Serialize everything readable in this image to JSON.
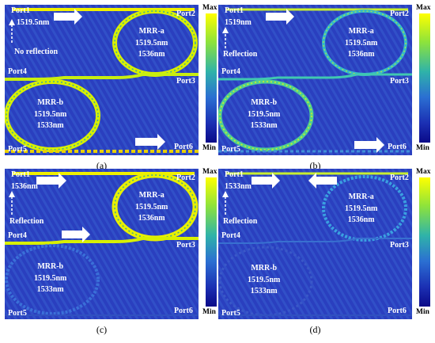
{
  "colorbar": {
    "max_label": "Max",
    "min_label": "Min",
    "colors": [
      "#ffff00",
      "#8ee33b",
      "#2fb3a9",
      "#2b6fd2",
      "#1b2fb3",
      "#0a0a88"
    ]
  },
  "panels": [
    {
      "caption": "(a)",
      "port1": "Port1",
      "wavelength": "1519.5nm",
      "reflection": "No reflection",
      "port2": "Port2",
      "port3": "Port3",
      "port4": "Port4",
      "port5": "Port5",
      "port6": "Port6",
      "mrr_a": {
        "name": "MRR-a",
        "w1": "1519.5nm",
        "w2": "1536nm"
      },
      "mrr_b": {
        "name": "MRR-b",
        "w1": "1519.5nm",
        "w2": "1533nm"
      }
    },
    {
      "caption": "(b)",
      "port1": "Port1",
      "wavelength": "1519nm",
      "reflection": "Reflection",
      "port2": "Port2",
      "port3": "Port3",
      "port4": "Port4",
      "port5": "Port5",
      "port6": "Port6",
      "mrr_a": {
        "name": "MRR-a",
        "w1": "1519.5nm",
        "w2": "1536nm"
      },
      "mrr_b": {
        "name": "MRR-b",
        "w1": "1519.5nm",
        "w2": "1533nm"
      }
    },
    {
      "caption": "(c)",
      "port1": "Port1",
      "wavelength": "1536nm",
      "reflection": "Reflection",
      "port2": "Port2",
      "port3": "Port3",
      "port4": "Port4",
      "port5": "Port5",
      "port6": "Port6",
      "mrr_a": {
        "name": "MRR-a",
        "w1": "1519.5nm",
        "w2": "1536nm"
      },
      "mrr_b": {
        "name": "MRR-b",
        "w1": "1519.5nm",
        "w2": "1533nm"
      }
    },
    {
      "caption": "(d)",
      "port1": "Port1",
      "wavelength": "1533nm",
      "reflection": "Reflection",
      "port2": "Port2",
      "port3": "Port3",
      "port4": "Port4",
      "port5": "Port5",
      "port6": "Port6",
      "mrr_a": {
        "name": "MRR-a",
        "w1": "1519.5nm",
        "w2": "1536nm"
      },
      "mrr_b": {
        "name": "MRR-b",
        "w1": "1519.5nm",
        "w2": "1533nm"
      }
    }
  ]
}
